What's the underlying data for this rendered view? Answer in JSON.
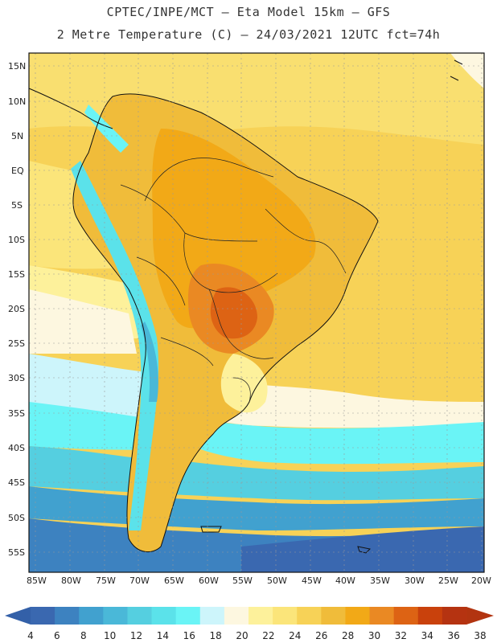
{
  "title_line1": "CPTEC/INPE/MCT  –  Eta Model 15km – GFS",
  "title_line2": "2 Metre Temperature (C) – 24/03/2021 12UTC fct=74h",
  "lat_labels": [
    "15N",
    "10N",
    "5N",
    "EQ",
    "5S",
    "10S",
    "15S",
    "20S",
    "25S",
    "30S",
    "35S",
    "40S",
    "45S",
    "50S",
    "55S"
  ],
  "lon_labels": [
    "85W",
    "80W",
    "75W",
    "70W",
    "65W",
    "60W",
    "55W",
    "50W",
    "45W",
    "40W",
    "35W",
    "30W",
    "25W",
    "20W"
  ],
  "colorbar": {
    "labels": [
      "4",
      "6",
      "8",
      "10",
      "12",
      "14",
      "16",
      "18",
      "20",
      "22",
      "24",
      "26",
      "28",
      "30",
      "32",
      "34",
      "36",
      "38"
    ],
    "colors": [
      "#3a68b0",
      "#3d82c0",
      "#41a1cf",
      "#4ab8d8",
      "#55cfe0",
      "#5be2ea",
      "#6af4f6",
      "#cdf5fb",
      "#fdf7e0",
      "#fdf19b",
      "#fbe57a",
      "#f7d257",
      "#f0bc3a",
      "#f2a917",
      "#ea8923",
      "#dd6314",
      "#c9410c",
      "#b53311"
    ],
    "under_color": "#3360a8",
    "over_color": "#b23410"
  },
  "icons": {
    "coastline": "coastline-outline",
    "borders": "country-borders"
  }
}
